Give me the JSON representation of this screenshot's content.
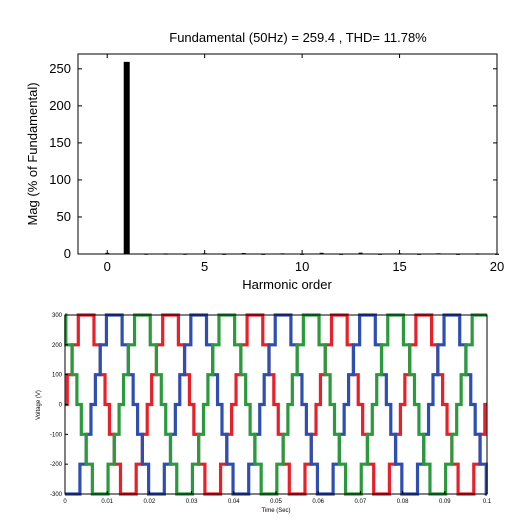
{
  "chart_data": [
    {
      "type": "bar",
      "title": "Fundamental (50Hz) = 259.4 , THD= 11.78%",
      "xlabel": "Harmonic order",
      "ylabel": "Mag (% of Fundamental)",
      "xlim": [
        -1.5,
        20
      ],
      "ylim": [
        0,
        270
      ],
      "xticks": [
        0,
        5,
        10,
        15,
        20
      ],
      "yticks": [
        0,
        50,
        100,
        150,
        200,
        250
      ],
      "grid": false,
      "bar_color": "#000000",
      "categories": [
        0,
        1,
        2,
        3,
        4,
        5,
        6,
        7,
        8,
        9,
        10,
        11,
        12,
        13,
        14,
        15,
        16,
        17,
        18,
        19,
        20
      ],
      "values": [
        1.5,
        259.4,
        0.6,
        0.8,
        0.6,
        1.0,
        0.5,
        1.3,
        0.5,
        0.9,
        0.5,
        1.6,
        0.5,
        1.8,
        0.5,
        0.9,
        0.5,
        1.0,
        0.5,
        0.8,
        0.5
      ]
    },
    {
      "type": "line",
      "title": "",
      "xlabel": "Time (Sec)",
      "ylabel": "Voltage (V)",
      "xlim": [
        0,
        0.1
      ],
      "ylim": [
        -300,
        300
      ],
      "xticks": [
        0,
        0.01,
        0.02,
        0.03,
        0.04,
        0.05,
        0.06,
        0.07,
        0.08,
        0.09,
        0.1
      ],
      "yticks": [
        -300,
        -200,
        -100,
        0,
        100,
        200,
        300
      ],
      "grid": false,
      "frequency_hz": 50,
      "series": [
        {
          "color": "#e8202a",
          "phase_deg": 0,
          "levels": [
            0,
            100,
            200,
            300
          ]
        },
        {
          "color": "#2f4fb0",
          "phase_deg": -120,
          "levels": [
            0,
            100,
            200,
            300
          ]
        },
        {
          "color": "#2a9a3c",
          "phase_deg": 120,
          "levels": [
            0,
            100,
            200,
            300
          ]
        }
      ]
    }
  ]
}
